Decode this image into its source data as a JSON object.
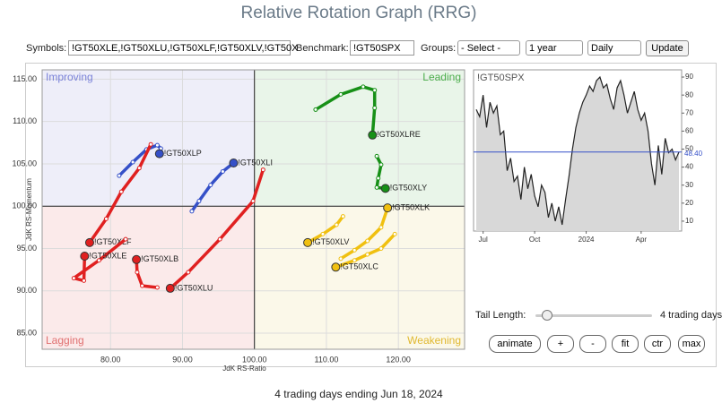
{
  "header": {
    "title": "Relative Rotation Graph (RRG)"
  },
  "toolbar": {
    "symbols_label": "Symbols:",
    "symbols_value": "!GT50XLE,!GT50XLU,!GT50XLF,!GT50XLV,!GT50X",
    "benchmark_label": "Benchmark:",
    "benchmark_value": "!GT50SPX",
    "groups_label": "Groups:",
    "groups_value": "- Select -",
    "period_value": "1 year",
    "interval_value": "Daily",
    "update_button": "Update"
  },
  "rrg": {
    "type": "scatter",
    "x_label": "JdK RS-Ratio",
    "y_label": "JdK RS-Momentum",
    "xlim": [
      70.5,
      129.2
    ],
    "ylim": [
      83.1,
      116.1
    ],
    "center": {
      "x": 100,
      "y": 100
    },
    "xticks": [
      {
        "value": 80,
        "label": "80.00"
      },
      {
        "value": 90,
        "label": "90.00"
      },
      {
        "value": 100,
        "label": "100.00"
      },
      {
        "value": 110,
        "label": "110.00"
      },
      {
        "value": 120,
        "label": "120.00"
      }
    ],
    "yticks": [
      {
        "value": 85,
        "label": "85.00"
      },
      {
        "value": 90,
        "label": "90.00"
      },
      {
        "value": 95,
        "label": "95.00"
      },
      {
        "value": 100,
        "label": "100.00"
      },
      {
        "value": 105,
        "label": "105.00"
      },
      {
        "value": 110,
        "label": "110.00"
      },
      {
        "value": 115,
        "label": "115.00"
      }
    ],
    "quadrants": {
      "improving": "Improving",
      "leading": "Leading",
      "lagging": "Lagging",
      "weakening": "Weakening"
    },
    "series": [
      {
        "name": "!GT50XLP",
        "color": "#3550c8",
        "x": [
          81.2,
          83.1,
          85.0,
          86.5,
          87.0,
          86.8
        ],
        "y": [
          103.6,
          105.2,
          106.7,
          107.2,
          106.8,
          106.2
        ]
      },
      {
        "name": "!GT50XLI",
        "color": "#3550c8",
        "x": [
          91.3,
          92.3,
          93.9,
          95.6,
          97.1
        ],
        "y": [
          99.4,
          100.6,
          102.5,
          104.1,
          105.1
        ]
      },
      {
        "name": "!GT50XLRE",
        "color": "#179017",
        "x": [
          108.5,
          112.0,
          115.1,
          116.7,
          116.7,
          116.4
        ],
        "y": [
          111.4,
          113.2,
          114.1,
          113.7,
          111.6,
          108.4
        ]
      },
      {
        "name": "!GT50XLY",
        "color": "#179017",
        "x": [
          117.0,
          117.6,
          117.2,
          117.0,
          118.2
        ],
        "y": [
          105.9,
          104.9,
          103.3,
          102.2,
          102.1
        ]
      },
      {
        "name": "!GT50XLK",
        "color": "#f0c010",
        "x": [
          112.0,
          113.9,
          115.7,
          117.6,
          118.5
        ],
        "y": [
          93.8,
          94.8,
          95.9,
          97.5,
          99.8
        ]
      },
      {
        "name": "!GT50XLV",
        "color": "#f0c010",
        "x": [
          112.3,
          111.4,
          109.5,
          107.4
        ],
        "y": [
          98.8,
          97.8,
          96.7,
          95.7
        ]
      },
      {
        "name": "!GT50XLC",
        "color": "#f0c010",
        "x": [
          119.5,
          117.6,
          115.7,
          113.9,
          111.3
        ],
        "y": [
          96.7,
          95.0,
          94.3,
          93.6,
          92.8
        ]
      },
      {
        "name": "!GT50XLF",
        "color": "#e02020",
        "x": [
          85.6,
          84.0,
          81.5,
          79.4,
          77.1
        ],
        "y": [
          107.3,
          104.5,
          101.7,
          98.5,
          95.7
        ]
      },
      {
        "name": "!GT50XLE",
        "color": "#e02020",
        "x": [
          82.1,
          78.4,
          74.9,
          76.3,
          76.4
        ],
        "y": [
          96.1,
          93.6,
          91.5,
          91.2,
          94.1
        ]
      },
      {
        "name": "!GT50XLB",
        "color": "#e02020",
        "x": [
          86.5,
          84.4,
          83.7,
          83.6
        ],
        "y": [
          90.4,
          90.6,
          92.2,
          93.7
        ]
      },
      {
        "name": "!GT50XLU",
        "color": "#e02020",
        "x": [
          101.2,
          99.8,
          95.2,
          90.8,
          88.3
        ],
        "y": [
          104.3,
          100.6,
          96.1,
          92.2,
          90.3
        ]
      }
    ]
  },
  "benchmark": {
    "type": "area",
    "title": "!GT50SPX",
    "color": "#222222",
    "ylim": [
      4.5,
      94
    ],
    "yticks": [
      10,
      20,
      30,
      40,
      50,
      60,
      70,
      80,
      90
    ],
    "x_labels": [
      {
        "value": 2,
        "label": "Jul"
      },
      {
        "value": 17,
        "label": "Oct"
      },
      {
        "value": 32,
        "label": "2024"
      },
      {
        "value": 48,
        "label": "Apr"
      }
    ],
    "values": [
      72,
      68,
      80,
      62,
      76,
      70,
      74,
      58,
      60,
      38,
      45,
      32,
      35,
      22,
      40,
      28,
      36,
      24,
      18,
      30,
      26,
      12,
      20,
      10,
      18,
      8,
      22,
      35,
      50,
      62,
      70,
      76,
      80,
      85,
      82,
      88,
      90,
      84,
      86,
      78,
      72,
      84,
      88,
      80,
      70,
      76,
      82,
      72,
      66,
      70,
      60,
      42,
      30,
      52,
      36,
      56,
      48,
      50,
      44,
      48.4
    ],
    "last_value_label": "48.40",
    "last_color": "#3550c8"
  },
  "controls": {
    "tail_label": "Tail Length:",
    "tail_value": "4 trading days",
    "buttons": [
      "animate",
      "+",
      "-",
      "fit",
      "ctr",
      "max"
    ]
  },
  "footer": {
    "text": "4 trading days ending Jun 18, 2024"
  }
}
